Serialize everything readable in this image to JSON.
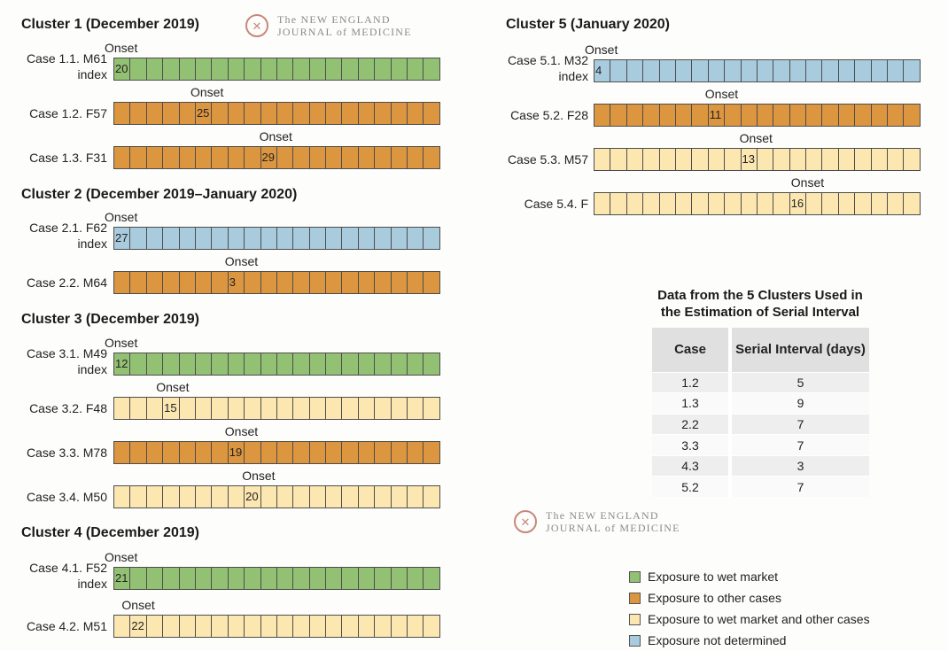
{
  "colors": {
    "wet_market": "#93c173",
    "other_cases": "#dc9640",
    "wet_market_and_other": "#fce7b0",
    "not_determined": "#a9cbde"
  },
  "logo": {
    "line1": "The NEW ENGLAND",
    "line2": "JOURNAL of MEDICINE"
  },
  "onset_label": "Onset",
  "chart_data": {
    "type": "timeline",
    "clusters": [
      {
        "title": "Cluster 1 (December 2019)",
        "cases": [
          {
            "label": "Case 1.1. M61",
            "sublabel": "index",
            "exposure": "wet_market",
            "onset_day": "20",
            "onset_index": 0
          },
          {
            "label": "Case 1.2. F57",
            "sublabel": "",
            "exposure": "other_cases",
            "onset_day": "25",
            "onset_index": 5
          },
          {
            "label": "Case 1.3. F31",
            "sublabel": "",
            "exposure": "other_cases",
            "onset_day": "29",
            "onset_index": 9
          }
        ]
      },
      {
        "title": "Cluster 2 (December 2019–January 2020)",
        "cases": [
          {
            "label": "Case 2.1. F62",
            "sublabel": "index",
            "exposure": "not_determined",
            "onset_day": "27",
            "onset_index": 0
          },
          {
            "label": "Case 2.2. M64",
            "sublabel": "",
            "exposure": "other_cases",
            "onset_day": "3",
            "onset_index": 7
          }
        ]
      },
      {
        "title": "Cluster 3 (December 2019)",
        "cases": [
          {
            "label": "Case 3.1. M49",
            "sublabel": "index",
            "exposure": "wet_market",
            "onset_day": "12",
            "onset_index": 0
          },
          {
            "label": "Case 3.2. F48",
            "sublabel": "",
            "exposure": "wet_market_and_other",
            "onset_day": "15",
            "onset_index": 3
          },
          {
            "label": "Case 3.3. M78",
            "sublabel": "",
            "exposure": "other_cases",
            "onset_day": "19",
            "onset_index": 7
          },
          {
            "label": "Case 3.4. M50",
            "sublabel": "",
            "exposure": "wet_market_and_other",
            "onset_day": "20",
            "onset_index": 8
          }
        ]
      },
      {
        "title": "Cluster 4 (December 2019)",
        "cases": [
          {
            "label": "Case 4.1. F52",
            "sublabel": "index",
            "exposure": "wet_market",
            "onset_day": "21",
            "onset_index": 0
          },
          {
            "label": "Case 4.2. M51",
            "sublabel": "",
            "exposure": "wet_market_and_other",
            "onset_day": "22",
            "onset_index": 1
          }
        ]
      },
      {
        "title": "Cluster 5 (January 2020)",
        "cases": [
          {
            "label": "Case 5.1. M32",
            "sublabel": "index",
            "exposure": "not_determined",
            "onset_day": "4",
            "onset_index": 0
          },
          {
            "label": "Case 5.2. F28",
            "sublabel": "",
            "exposure": "other_cases",
            "onset_day": "11",
            "onset_index": 7
          },
          {
            "label": "Case 5.3. M57",
            "sublabel": "",
            "exposure": "wet_market_and_other",
            "onset_day": "13",
            "onset_index": 9
          },
          {
            "label": "Case 5.4. F",
            "sublabel": "",
            "exposure": "wet_market_and_other",
            "onset_day": "16",
            "onset_index": 12
          }
        ]
      }
    ]
  },
  "serial_table": {
    "title": "Data from the 5 Clusters Used in the Estimation of Serial Interval",
    "headers": [
      "Case",
      "Serial Interval (days)"
    ],
    "rows": [
      [
        "1.2",
        "5"
      ],
      [
        "1.3",
        "9"
      ],
      [
        "2.2",
        "7"
      ],
      [
        "3.3",
        "7"
      ],
      [
        "4.3",
        "3"
      ],
      [
        "5.2",
        "7"
      ]
    ]
  },
  "legend": [
    {
      "key": "wet_market",
      "label": "Exposure to wet market"
    },
    {
      "key": "other_cases",
      "label": "Exposure to other cases"
    },
    {
      "key": "wet_market_and_other",
      "label": "Exposure to wet market and other cases"
    },
    {
      "key": "not_determined",
      "label": "Exposure not determined"
    }
  ]
}
